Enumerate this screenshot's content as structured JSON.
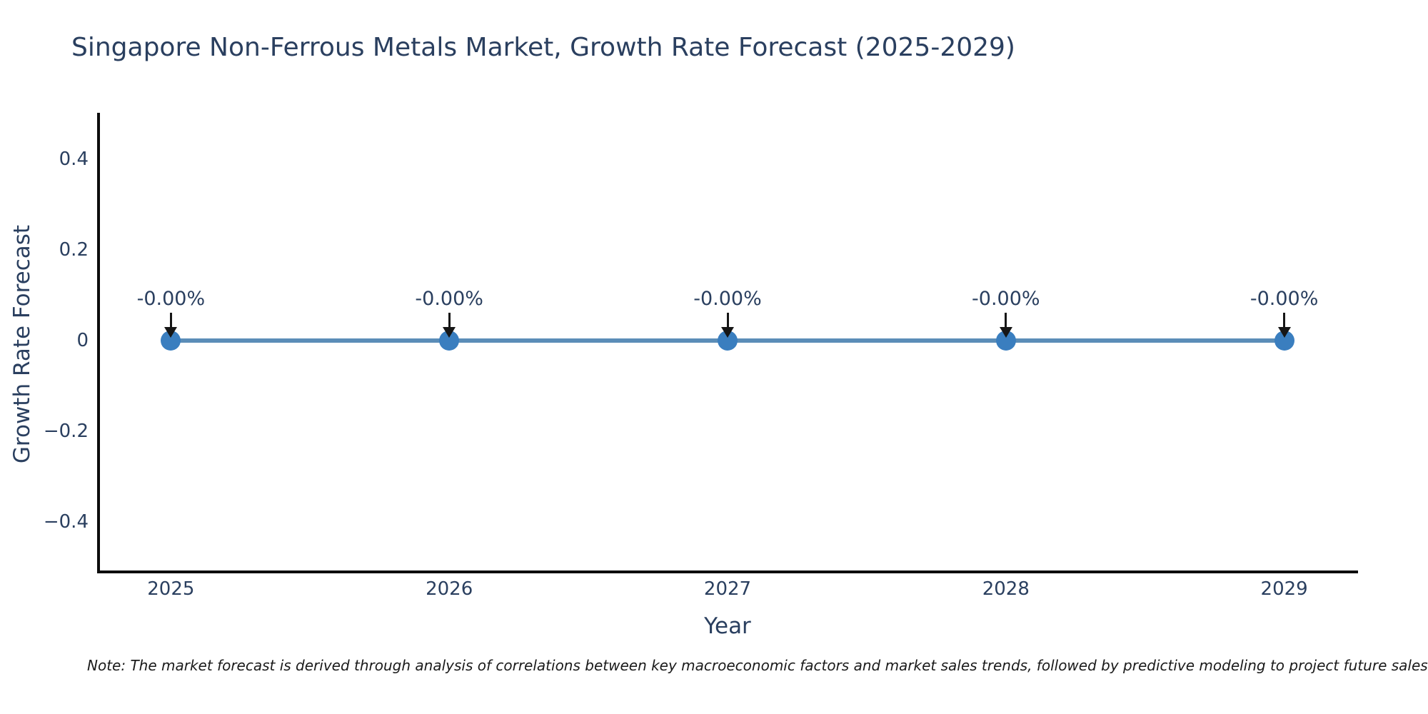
{
  "title": "Singapore Non-Ferrous Metals Market, Growth Rate Forecast (2025-2029)",
  "note": "Note: The market forecast is derived through analysis of correlations between key macroeconomic factors and market sales trends, followed by predictive modeling to project future sales.",
  "chart_data": {
    "type": "line",
    "title": "Singapore Non-Ferrous Metals Market, Growth Rate Forecast (2025-2029)",
    "xlabel": "Year",
    "ylabel": "Growth Rate Forecast",
    "x": [
      2025,
      2026,
      2027,
      2028,
      2029
    ],
    "values": [
      0,
      0,
      0,
      0,
      0
    ],
    "point_labels": [
      "-0.00%",
      "-0.00%",
      "-0.00%",
      "-0.00%",
      "-0.00%"
    ],
    "xtick_labels": [
      "2025",
      "2026",
      "2027",
      "2028",
      "2029"
    ],
    "yticks": {
      "values": [
        0.4,
        0.2,
        0,
        -0.2,
        -0.4
      ],
      "labels": [
        "0.4",
        "0.2",
        "0",
        "−0.2",
        "−0.4"
      ]
    },
    "xlim": [
      2024.74,
      2029.26
    ],
    "ylim": [
      -0.51,
      0.5
    ],
    "grid": false,
    "legend": "none",
    "colors": {
      "line": "#5b8db8",
      "marker": "#3a7ebf",
      "arrow": "#161616",
      "text": "#2a3f5f",
      "axis": "#0d0d0d"
    }
  }
}
